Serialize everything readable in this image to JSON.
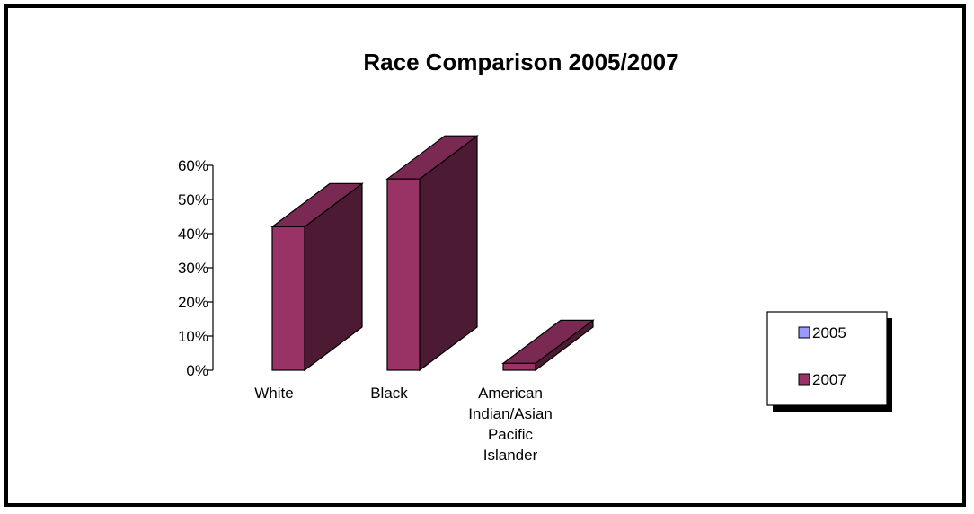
{
  "colors": {
    "series_2005": "#9999ff",
    "series_2007": "#993366",
    "series_2007_side": "#4d1a33",
    "series_2007_top": "#7a2952",
    "frame": "#000000"
  },
  "chart_data": {
    "type": "bar",
    "title": "Race Comparison 2005/2007",
    "xlabel": "",
    "ylabel": "",
    "ylim": [
      0,
      0.6
    ],
    "yticks": [
      "0%",
      "10%",
      "20%",
      "30%",
      "40%",
      "50%",
      "60%"
    ],
    "categories": [
      [
        "White"
      ],
      [
        "Black"
      ],
      [
        "American",
        "Indian/Asian",
        "Pacific",
        "Islander"
      ]
    ],
    "series": [
      {
        "name": "2005",
        "values": [
          0,
          0,
          0
        ]
      },
      {
        "name": "2007",
        "values": [
          0.42,
          0.56,
          0.02
        ]
      }
    ],
    "legend_position": "right",
    "three_d": true
  }
}
